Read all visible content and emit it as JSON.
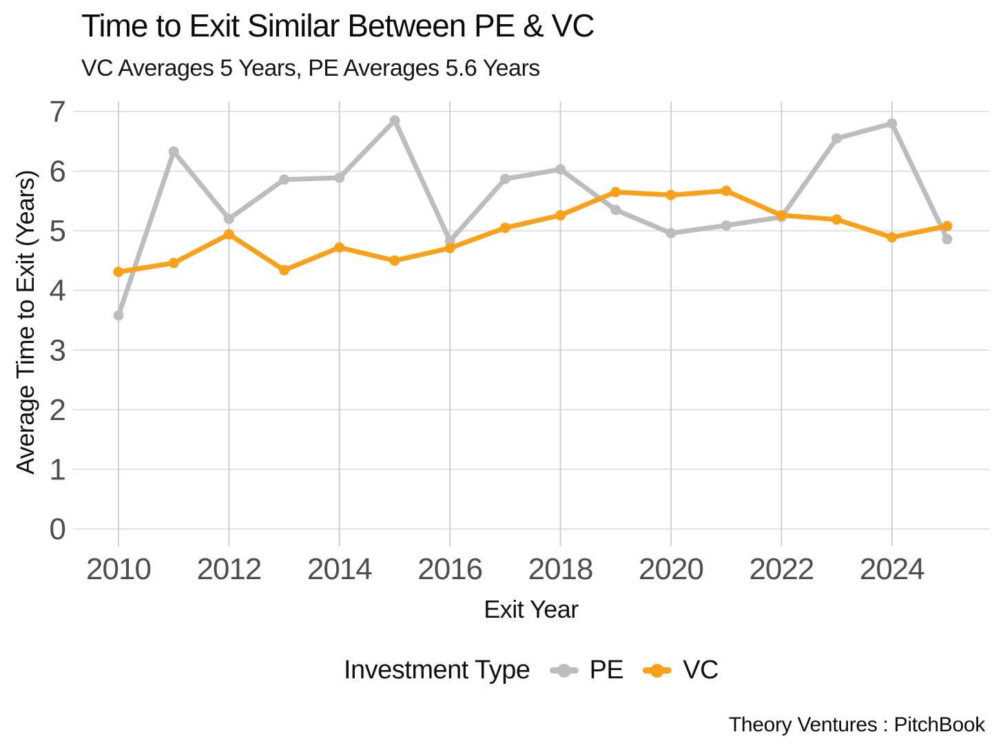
{
  "chart_data": {
    "type": "line",
    "title": "Time to Exit Similar Between PE & VC",
    "subtitle": "VC Averages 5 Years, PE Averages 5.6 Years",
    "xlabel": "Exit Year",
    "ylabel": "Average Time to Exit (Years)",
    "legend_title": "Investment Type",
    "legend_position": "bottom",
    "grid": true,
    "x": [
      2010,
      2011,
      2012,
      2013,
      2014,
      2015,
      2016,
      2017,
      2018,
      2019,
      2020,
      2021,
      2022,
      2023,
      2024,
      2025
    ],
    "xticks": [
      2010,
      2012,
      2014,
      2016,
      2018,
      2020,
      2022,
      2024
    ],
    "yticks": [
      0,
      1,
      2,
      3,
      4,
      5,
      6,
      7
    ],
    "ylim": [
      0,
      7
    ],
    "series": [
      {
        "name": "PE",
        "color": "#bdbdbd",
        "values": [
          3.58,
          6.33,
          5.2,
          5.86,
          5.89,
          6.85,
          4.83,
          5.87,
          6.03,
          5.35,
          4.96,
          5.09,
          5.23,
          6.55,
          6.8,
          4.86
        ]
      },
      {
        "name": "VC",
        "color": "#f9a11b",
        "values": [
          4.31,
          4.46,
          4.94,
          4.34,
          4.72,
          4.5,
          4.71,
          5.05,
          5.26,
          5.65,
          5.6,
          5.67,
          5.26,
          5.19,
          4.89,
          5.08
        ]
      }
    ]
  },
  "colors": {
    "background": "#ffffff",
    "grid_h": "#dadada",
    "grid_v": "#cccccc",
    "tick_text": "#4d4d4d",
    "text": "#111111"
  },
  "footer": {
    "credit": "Theory Ventures : PitchBook"
  }
}
